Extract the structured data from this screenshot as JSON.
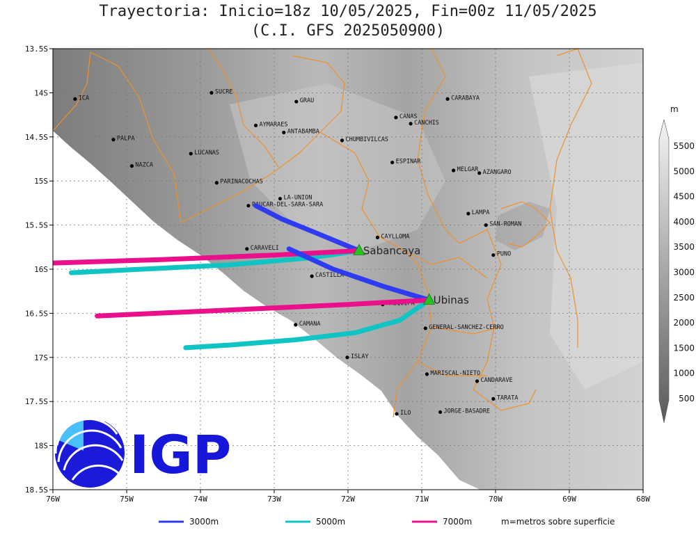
{
  "title": {
    "line1": "Trayectoria: Inicio=18z 10/05/2025, Fin=00z 11/05/2025",
    "line2": "(C.I. GFS 2025050900)"
  },
  "map": {
    "lon_range": [
      -76,
      -68
    ],
    "lat_range": [
      -18.5,
      -13.5
    ],
    "x_ticks": [
      {
        "lon": -76,
        "label": "76W"
      },
      {
        "lon": -75,
        "label": "75W"
      },
      {
        "lon": -74,
        "label": "74W"
      },
      {
        "lon": -73,
        "label": "73W"
      },
      {
        "lon": -72,
        "label": "72W"
      },
      {
        "lon": -71,
        "label": "71W"
      },
      {
        "lon": -70,
        "label": "70W"
      },
      {
        "lon": -69,
        "label": "69W"
      },
      {
        "lon": -68,
        "label": "68W"
      }
    ],
    "y_ticks": [
      {
        "lat": -13.5,
        "label": "13.5S"
      },
      {
        "lat": -14,
        "label": "14S"
      },
      {
        "lat": -14.5,
        "label": "14.5S"
      },
      {
        "lat": -15,
        "label": "15S"
      },
      {
        "lat": -15.5,
        "label": "15.5S"
      },
      {
        "lat": -16,
        "label": "16S"
      },
      {
        "lat": -16.5,
        "label": "16.5S"
      },
      {
        "lat": -17,
        "label": "17S"
      },
      {
        "lat": -17.5,
        "label": "17.5S"
      },
      {
        "lat": -18,
        "label": "18S"
      },
      {
        "lat": -18.5,
        "label": "18.5S"
      }
    ],
    "grid": true,
    "places": [
      {
        "name": "ICA",
        "lon": -75.7,
        "lat": -14.07
      },
      {
        "name": "SUCRE",
        "lon": -73.85,
        "lat": -14.0
      },
      {
        "name": "GRAU",
        "lon": -72.7,
        "lat": -14.1
      },
      {
        "name": "CARABAYA",
        "lon": -70.65,
        "lat": -14.07
      },
      {
        "name": "CANAS",
        "lon": -71.35,
        "lat": -14.28
      },
      {
        "name": "CANCHIS",
        "lon": -71.15,
        "lat": -14.35
      },
      {
        "name": "AYMARAES",
        "lon": -73.25,
        "lat": -14.37
      },
      {
        "name": "ANTABAMBA",
        "lon": -72.87,
        "lat": -14.45
      },
      {
        "name": "CHUMBIVILCAS",
        "lon": -72.08,
        "lat": -14.54
      },
      {
        "name": "PALPA",
        "lon": -75.18,
        "lat": -14.53
      },
      {
        "name": "LUCANAS",
        "lon": -74.13,
        "lat": -14.69
      },
      {
        "name": "NAZCA",
        "lon": -74.93,
        "lat": -14.83
      },
      {
        "name": "ESPINAR",
        "lon": -71.4,
        "lat": -14.79
      },
      {
        "name": "MELGAR",
        "lon": -70.57,
        "lat": -14.88
      },
      {
        "name": "AZANGARO",
        "lon": -70.22,
        "lat": -14.91
      },
      {
        "name": "PARINACOCHAS",
        "lon": -73.78,
        "lat": -15.02
      },
      {
        "name": "LA-UNION",
        "lon": -72.92,
        "lat": -15.2
      },
      {
        "name": "PAUCAR-DEL-SARA-SARA",
        "lon": -73.35,
        "lat": -15.28
      },
      {
        "name": "LAMPA",
        "lon": -70.37,
        "lat": -15.37
      },
      {
        "name": "SAN-ROMAN",
        "lon": -70.13,
        "lat": -15.5
      },
      {
        "name": "CAYLLOMA",
        "lon": -71.6,
        "lat": -15.64
      },
      {
        "name": "CARAVELI",
        "lon": -73.37,
        "lat": -15.77
      },
      {
        "name": "CONDESUYOS",
        "lon": -72.65,
        "lat": -15.84
      },
      {
        "name": "PUNO",
        "lon": -70.03,
        "lat": -15.84
      },
      {
        "name": "CASTILLA",
        "lon": -72.49,
        "lat": -16.08
      },
      {
        "name": "AREQUIPA",
        "lon": -71.53,
        "lat": -16.4
      },
      {
        "name": "CAMANA",
        "lon": -72.71,
        "lat": -16.63
      },
      {
        "name": "GENERAL-SANCHEZ-CERRO",
        "lon": -70.95,
        "lat": -16.67
      },
      {
        "name": "ISLAY",
        "lon": -72.01,
        "lat": -17.0
      },
      {
        "name": "MARISCAL-NIETO",
        "lon": -70.93,
        "lat": -17.19
      },
      {
        "name": "CANDARAVE",
        "lon": -70.25,
        "lat": -17.27
      },
      {
        "name": "TARATA",
        "lon": -70.03,
        "lat": -17.47
      },
      {
        "name": "ILO",
        "lon": -71.34,
        "lat": -17.64
      },
      {
        "name": "JORGE-BASADRE",
        "lon": -70.75,
        "lat": -17.62
      }
    ],
    "volcanoes": [
      {
        "name": "Sabancaya",
        "lon": -71.85,
        "lat": -15.79
      },
      {
        "name": "Ubinas",
        "lon": -70.9,
        "lat": -16.35
      }
    ]
  },
  "trajectories": [
    {
      "volcano": "Sabancaya",
      "level": "3000m",
      "color": "#2e3bf0",
      "points": [
        [
          -71.85,
          -15.79
        ],
        [
          -72.4,
          -15.6
        ],
        [
          -72.9,
          -15.43
        ],
        [
          -73.25,
          -15.28
        ]
      ]
    },
    {
      "volcano": "Sabancaya",
      "level": "5000m",
      "color": "#11c4c4",
      "points": [
        [
          -71.85,
          -15.79
        ],
        [
          -72.5,
          -15.87
        ],
        [
          -73.6,
          -15.95
        ],
        [
          -74.8,
          -16.0
        ],
        [
          -75.75,
          -16.04
        ]
      ]
    },
    {
      "volcano": "Sabancaya",
      "level": "7000m",
      "color": "#ea0f8a",
      "points": [
        [
          -71.85,
          -15.79
        ],
        [
          -73.0,
          -15.84
        ],
        [
          -74.5,
          -15.89
        ],
        [
          -76.0,
          -15.93
        ]
      ]
    },
    {
      "volcano": "Ubinas",
      "level": "3000m",
      "color": "#2e3bf0",
      "points": [
        [
          -70.9,
          -16.35
        ],
        [
          -71.5,
          -16.2
        ],
        [
          -72.2,
          -16.0
        ],
        [
          -72.8,
          -15.77
        ]
      ]
    },
    {
      "volcano": "Ubinas",
      "level": "5000m",
      "color": "#11c4c4",
      "points": [
        [
          -70.9,
          -16.35
        ],
        [
          -71.3,
          -16.58
        ],
        [
          -71.9,
          -16.72
        ],
        [
          -72.7,
          -16.8
        ],
        [
          -73.6,
          -16.86
        ],
        [
          -74.2,
          -16.89
        ]
      ]
    },
    {
      "volcano": "Ubinas",
      "level": "7000m",
      "color": "#ea0f8a",
      "points": [
        [
          -70.9,
          -16.35
        ],
        [
          -72.0,
          -16.4
        ],
        [
          -73.8,
          -16.47
        ],
        [
          -75.4,
          -16.53
        ]
      ]
    }
  ],
  "colorbar": {
    "unit": "m",
    "labels": [
      "500",
      "1000",
      "1500",
      "2000",
      "2500",
      "3000",
      "3500",
      "4000",
      "4500",
      "5000",
      "5500"
    ]
  },
  "legend": {
    "items": [
      {
        "label": "3000m",
        "color": "#2e3bf0"
      },
      {
        "label": "5000m",
        "color": "#11c4c4"
      },
      {
        "label": "7000m",
        "color": "#ea0f8a"
      }
    ],
    "note": "m=metros sobre superficie"
  },
  "logo": {
    "text": "IGP"
  }
}
